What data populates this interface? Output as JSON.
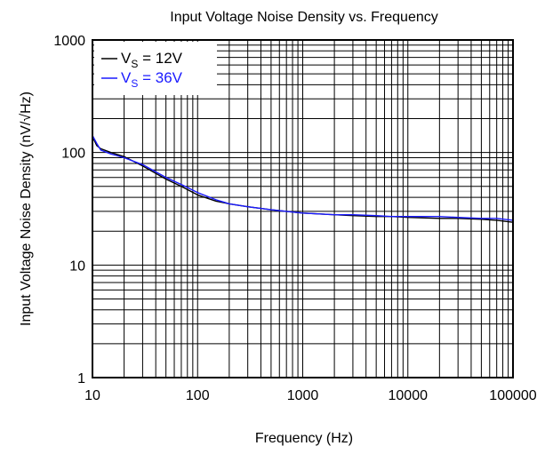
{
  "chart_data": {
    "type": "line",
    "title": "Input Voltage Noise Density vs. Frequency",
    "xlabel": "Frequency (Hz)",
    "ylabel": "Input Voltage Noise Density (nV/√Hz)",
    "xscale": "log",
    "yscale": "log",
    "xlim": [
      10,
      100000
    ],
    "ylim": [
      1,
      1000
    ],
    "grid": true,
    "legend_position": "top-left",
    "x_ticks": [
      "10",
      "100",
      "1000",
      "10000",
      "100000"
    ],
    "y_ticks": [
      "1",
      "10",
      "100",
      "1000"
    ],
    "legend": [
      {
        "text": "V",
        "sub": "S",
        "rest": " = 12V",
        "color": "#000000"
      },
      {
        "text": "V",
        "sub": "S",
        "rest": " = 36V",
        "color": "#1a1aff"
      }
    ],
    "x": [
      10,
      11,
      12,
      15,
      20,
      30,
      50,
      70,
      100,
      150,
      200,
      300,
      500,
      700,
      1000,
      2000,
      3000,
      5000,
      7000,
      10000,
      20000,
      30000,
      50000,
      70000,
      100000
    ],
    "series": [
      {
        "color": "#000000",
        "values": [
          138,
          115,
          108,
          100,
          92,
          76,
          58,
          50,
          42,
          37,
          35,
          33,
          31,
          30,
          29,
          28,
          27.5,
          27,
          27,
          26.5,
          26,
          26,
          25.5,
          25,
          24
        ]
      },
      {
        "color": "#1a1aff",
        "values": [
          142,
          120,
          105,
          97,
          90,
          78,
          60,
          52,
          44,
          38,
          35,
          33,
          31,
          30,
          29,
          28,
          28,
          27.5,
          27,
          27,
          27,
          26.5,
          26,
          26,
          25
        ]
      }
    ]
  }
}
